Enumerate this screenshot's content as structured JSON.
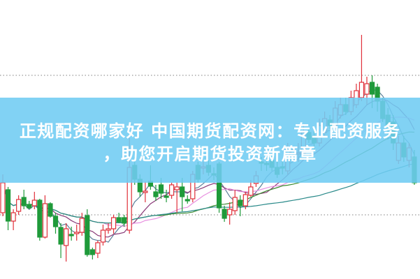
{
  "banner": {
    "line1": "正规配资哪家好 中国期货配资网：专业配资服务",
    "line2": "，助您开启期货投资新篇章"
  },
  "chart_data": {
    "type": "candlestick",
    "title": "",
    "xlabel": "",
    "ylabel": "",
    "ylim": [
      0,
      40
    ],
    "grid": false,
    "reference_lines": [
      29.2,
      9.2
    ],
    "colors": {
      "up": "#e0303a",
      "down": "#1f9a3a",
      "banner": "#70ccf2"
    },
    "moving_averages": [
      {
        "period": 5,
        "color": "#5a7f99"
      },
      {
        "period": 10,
        "color": "#8a3a78"
      },
      {
        "period": 20,
        "color": "#e890e0"
      },
      {
        "period": 30,
        "color": "#3a8a30"
      },
      {
        "period": 60,
        "color": "#2a8a8a"
      }
    ],
    "candles_ochl_note": "[open, close, high, low]",
    "candles": [
      [
        9.5,
        13.8,
        15,
        9
      ],
      [
        12.8,
        8.3,
        13.2,
        7
      ],
      [
        8.3,
        9.5,
        10,
        7
      ],
      [
        9.7,
        11.4,
        12,
        9.2
      ],
      [
        11.7,
        10.5,
        12.8,
        10
      ],
      [
        10.7,
        10.2,
        11.2,
        10
      ],
      [
        10.5,
        11.3,
        12.5,
        10
      ],
      [
        11.3,
        6,
        11.5,
        5.5
      ],
      [
        6,
        10.8,
        12,
        5.8
      ],
      [
        10.8,
        9,
        11,
        8.8
      ],
      [
        9,
        7.5,
        9.5,
        6.5
      ],
      [
        7.4,
        5,
        8,
        3
      ],
      [
        4.8,
        7.2,
        8,
        2.5
      ],
      [
        6.4,
        6.2,
        7.5,
        5.5
      ],
      [
        6.5,
        6.7,
        7.8,
        5.5
      ],
      [
        6.7,
        8.7,
        9.5,
        6.2
      ],
      [
        9.1,
        3.5,
        10,
        3.2
      ],
      [
        4.2,
        3.5,
        4.5,
        2.8
      ],
      [
        3.7,
        5.2,
        5.5,
        3
      ],
      [
        5.3,
        7,
        7.8,
        4.8
      ],
      [
        7,
        7.2,
        8,
        6.5
      ],
      [
        7.2,
        8.8,
        9.2,
        6.5
      ],
      [
        8.8,
        8.2,
        9.5,
        8
      ],
      [
        8.8,
        8,
        9.2,
        7.5
      ],
      [
        7,
        16,
        20.3,
        6.5
      ],
      [
        16.3,
        14.3,
        17.5,
        13.5
      ],
      [
        14.3,
        12.5,
        15,
        11.8
      ],
      [
        12.4,
        12.6,
        14,
        11
      ],
      [
        14,
        13.3,
        16.3,
        12.8
      ],
      [
        12.5,
        11.8,
        13.5,
        11.2
      ],
      [
        13.5,
        12.3,
        14.5,
        11.5
      ],
      [
        11.9,
        11.7,
        12.8,
        11
      ],
      [
        12,
        13.5,
        13.8,
        11.5
      ],
      [
        12.8,
        13.2,
        13.8,
        9.5
      ],
      [
        13.2,
        11.8,
        14.5,
        9.7
      ],
      [
        11.4,
        11.2,
        12,
        10.8
      ],
      [
        11.5,
        15,
        15.5,
        11
      ],
      [
        16.3,
        14.3,
        16.8,
        13.8
      ],
      [
        15.9,
        16.1,
        16.8,
        15
      ],
      [
        16.3,
        15.3,
        17,
        14.8
      ],
      [
        15.1,
        14.9,
        16,
        14.2
      ],
      [
        16.5,
        10.2,
        16.8,
        9.5
      ],
      [
        10,
        8.7,
        10.5,
        8.2
      ],
      [
        9.2,
        10,
        11,
        7.8
      ],
      [
        9.8,
        11.7,
        12.8,
        9.2
      ],
      [
        11.3,
        10.5,
        12,
        9
      ],
      [
        10.5,
        12.1,
        12.5,
        10
      ],
      [
        12,
        13.2,
        14.2,
        11.8
      ],
      [
        13.7,
        14.8,
        15.5,
        13.2
      ],
      [
        16.8,
        16.6,
        17.5,
        15.5
      ],
      [
        16.6,
        16.4,
        17.2,
        15.5
      ],
      [
        17,
        16,
        17.8,
        15.5
      ],
      [
        16,
        15,
        16.8,
        14.5
      ],
      [
        16.1,
        15.9,
        17,
        15
      ],
      [
        15.5,
        18.7,
        19.5,
        15
      ],
      [
        18,
        18.5,
        19,
        17.5
      ],
      [
        17.9,
        18.1,
        19.5,
        16.8
      ],
      [
        18,
        21,
        22,
        17.5
      ],
      [
        21,
        20,
        21.5,
        19.5
      ],
      [
        20.5,
        19.5,
        21.5,
        18.5
      ],
      [
        19.5,
        22,
        23,
        19
      ],
      [
        21,
        23,
        24,
        20.5
      ],
      [
        22.8,
        22,
        23.5,
        21.5
      ],
      [
        22,
        24.5,
        25.5,
        21.5
      ],
      [
        23.5,
        25,
        26,
        23
      ],
      [
        25,
        24,
        26,
        23.5
      ],
      [
        24,
        26,
        27,
        23.5
      ],
      [
        25,
        27,
        28,
        24.5
      ],
      [
        26,
        28.2,
        35,
        25.5
      ],
      [
        26.5,
        28,
        29,
        25
      ],
      [
        28.2,
        26.5,
        29.2,
        24.5
      ],
      [
        27.5,
        25.5,
        28,
        24
      ],
      [
        25.5,
        23,
        26,
        22.5
      ],
      [
        23.5,
        22,
        24.5,
        20
      ],
      [
        22.5,
        19.5,
        23.5,
        18.5
      ],
      [
        17,
        19.5,
        20.5,
        16.5
      ],
      [
        19.5,
        17.5,
        20.5,
        16.8
      ],
      [
        17,
        18.8,
        19.5,
        16
      ],
      [
        17.5,
        13.8,
        18.5,
        13.5
      ]
    ]
  }
}
